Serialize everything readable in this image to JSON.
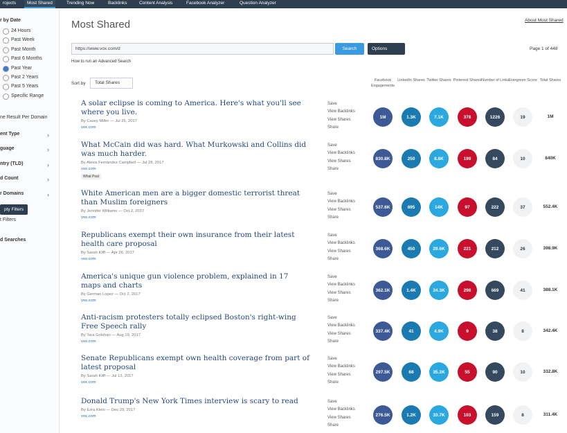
{
  "nav": [
    "rojects",
    "Most Shared",
    "Trending Now",
    "Backlinks",
    "Content Analysis",
    "Facebook Analyzer",
    "Question Analyzer"
  ],
  "sidebar": {
    "date_heading": "r by Date",
    "date_options": [
      "24 Hours",
      "Past Week",
      "Past Month",
      "Past 6 Months",
      "Past Year",
      "Past 2 Years",
      "Past 5 Years",
      "Specific Range"
    ],
    "selected": "Past Year",
    "one_result": "ne Result Per Domain",
    "filters": [
      "ent Type",
      "guage",
      "ntry (TLD)",
      "d Count",
      "r Domains"
    ],
    "apply": "pty Filters",
    "reset": "t Filters",
    "saved": "d Searches"
  },
  "header": {
    "title": "Most Shared",
    "about": "About Most Shared",
    "query": "https://www.vox.com/d",
    "search": "Search",
    "options": "Options",
    "page": "Page 1 of 448",
    "advanced": "How to run an Advanced Search",
    "sort_label": "Sort by",
    "sort_value": "Total Shares"
  },
  "columns": [
    "Facebook Engagements",
    "LinkedIn Shares",
    "Twitter Shares",
    "Pinterest Shares",
    "Number of Links",
    "Evergreen Score",
    "Total Shares"
  ],
  "actions": [
    "Save",
    "View Backlinks",
    "View Shares",
    "Share"
  ],
  "rows": [
    {
      "title": "A solar eclipse is coming to America. Here's what you'll see where you live.",
      "byline": "By Casey Miller — Jul 25, 2017",
      "domain": "vox.com",
      "stats": [
        "1M",
        "1.3K",
        "7.1K",
        "378",
        "1226",
        "19",
        "1M"
      ]
    },
    {
      "title": "What McCain did was hard. What Murkowski and Collins did was much harder.",
      "byline": "By Alexis Fernández Campbell — Jul 28, 2017",
      "domain": "vox.com",
      "tag": "What Post",
      "stats": [
        "830.8K",
        "250",
        "8.8K",
        "199",
        "84",
        "10",
        "840K"
      ]
    },
    {
      "title": "White American men are a bigger domestic terrorist threat than Muslim foreigners",
      "byline": "By Jennifer Williams — Oct 2, 2017",
      "domain": "vox.com",
      "stats": [
        "537.6K",
        "695",
        "14K",
        "97",
        "222",
        "37",
        "552.4K"
      ]
    },
    {
      "title": "Republicans exempt their own insurance from their latest health care proposal",
      "byline": "By Sarah Kliff — Apr 26, 2017",
      "domain": "vox.com",
      "stats": [
        "368.6K",
        "450",
        "29.6K",
        "221",
        "212",
        "26",
        "398.9K"
      ]
    },
    {
      "title": "America's unique gun violence problem, explained in 17 maps and charts",
      "byline": "By German Lopez — Oct 2, 2017",
      "domain": "vox.com",
      "stats": [
        "362.1K",
        "1.4K",
        "24.3K",
        "298",
        "669",
        "41",
        "388.1K"
      ]
    },
    {
      "title": "Anti-racism protesters totally eclipsed Boston's right-wing Free Speech rally",
      "byline": "By Tara Golshan — Aug 19, 2017",
      "domain": "vox.com",
      "stats": [
        "337.4K",
        "41",
        "4.9K",
        "9",
        "38",
        "8",
        "342.4K"
      ]
    },
    {
      "title": "Senate Republicans exempt own health coverage from part of latest proposal",
      "byline": "By Sarah Kliff — Jul 13, 2017",
      "domain": "vox.com",
      "stats": [
        "297.5K",
        "68",
        "35.2K",
        "55",
        "90",
        "10",
        "332.8K"
      ]
    },
    {
      "title": "Donald Trump's New York Times interview is scary to read",
      "byline": "By Ezra Klein — Dec 29, 2017",
      "domain": "vox.com",
      "stats": [
        "276.5K",
        "1.2K",
        "33.7K",
        "103",
        "159",
        "8",
        "311.4K"
      ]
    }
  ]
}
